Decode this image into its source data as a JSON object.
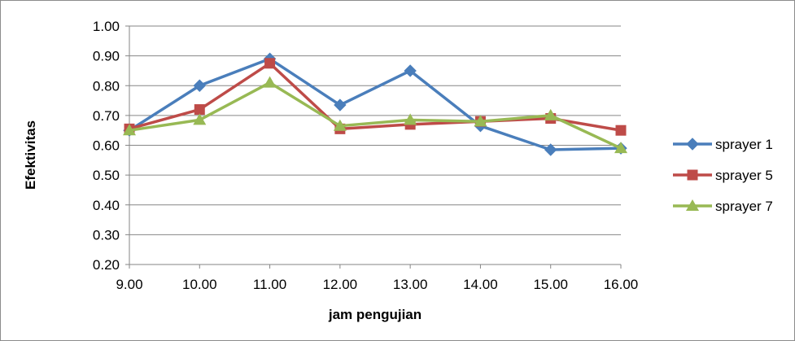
{
  "chart_data": {
    "type": "line",
    "title": "",
    "xlabel": "jam pengujian",
    "ylabel": "Efektivitas",
    "categories": [
      "9.00",
      "10.00",
      "11.00",
      "12.00",
      "13.00",
      "14.00",
      "15.00",
      "16.00"
    ],
    "y_ticks": [
      "0.20",
      "0.30",
      "0.40",
      "0.50",
      "0.60",
      "0.70",
      "0.80",
      "0.90",
      "1.00"
    ],
    "ylim": [
      0.2,
      1.0
    ],
    "grid": "horizontal",
    "legend_position": "right",
    "series": [
      {
        "name": "sprayer 1",
        "color": "#4a7ebb",
        "marker": "diamond",
        "values": [
          0.65,
          0.8,
          0.89,
          0.735,
          0.85,
          0.665,
          0.585,
          0.59
        ]
      },
      {
        "name": "sprayer 5",
        "color": "#be4b48",
        "marker": "square",
        "values": [
          0.655,
          0.72,
          0.875,
          0.655,
          0.67,
          0.68,
          0.69,
          0.65
        ]
      },
      {
        "name": "sprayer 7",
        "color": "#98b954",
        "marker": "triangle",
        "values": [
          0.65,
          0.685,
          0.81,
          0.665,
          0.685,
          0.68,
          0.7,
          0.59
        ]
      }
    ]
  }
}
